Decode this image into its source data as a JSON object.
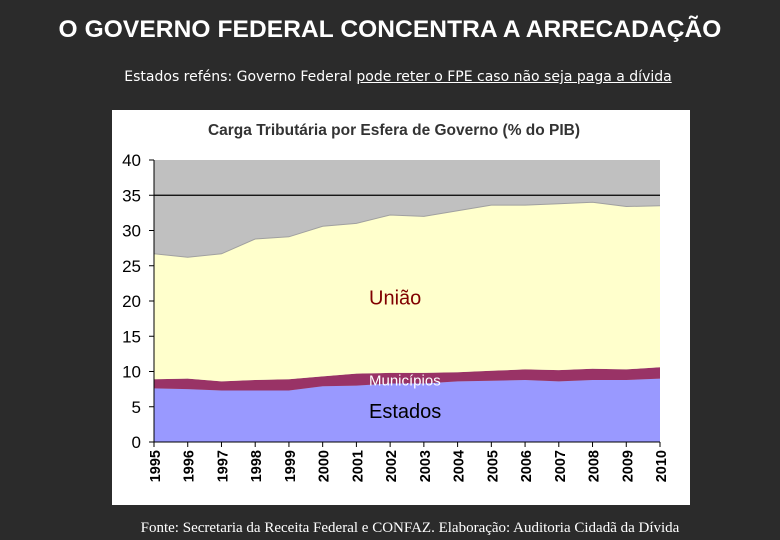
{
  "slide": {
    "title": "O GOVERNO FEDERAL CONCENTRA A ARRECADAÇÃO",
    "subtitle_plain": "Estados reféns: Governo Federal ",
    "subtitle_underlined": "pode reter o FPE caso não seja paga a dívida",
    "source": "Fonte: Secretaria da Receita Federal e CONFAZ. Elaboração: Auditoria Cidadã da Dívida"
  },
  "chart_data": {
    "type": "area",
    "stacked": true,
    "title": "Carga Tributária por Esfera de Governo (% do PIB)",
    "x": [
      "1995",
      "1996",
      "1997",
      "1998",
      "1999",
      "2000",
      "2001",
      "2002",
      "2003",
      "2004",
      "2005",
      "2006",
      "2007",
      "2008",
      "2009",
      "2010"
    ],
    "ylim": [
      0,
      40
    ],
    "yticks": [
      0,
      5,
      10,
      15,
      20,
      25,
      30,
      35,
      40
    ],
    "grid": true,
    "reference_line": 35,
    "series": [
      {
        "name": "Estados",
        "color": "#9999ff",
        "values": [
          7.6,
          7.5,
          7.3,
          7.3,
          7.3,
          7.9,
          8.0,
          8.3,
          8.3,
          8.6,
          8.7,
          8.8,
          8.6,
          8.8,
          8.8,
          9.0
        ]
      },
      {
        "name": "Municípios",
        "color": "#993366",
        "values": [
          1.3,
          1.5,
          1.3,
          1.5,
          1.6,
          1.4,
          1.7,
          1.5,
          1.5,
          1.3,
          1.4,
          1.5,
          1.6,
          1.6,
          1.5,
          1.6
        ]
      },
      {
        "name": "União",
        "color": "#ffffcc",
        "values": [
          17.8,
          17.2,
          18.1,
          20.0,
          20.2,
          21.3,
          21.3,
          22.4,
          22.2,
          22.9,
          23.5,
          23.3,
          23.6,
          23.6,
          23.1,
          22.9
        ]
      }
    ],
    "annotations": [
      {
        "text": "União",
        "series": "União"
      },
      {
        "text": "Municípios",
        "series": "Municípios"
      },
      {
        "text": "Estados",
        "series": "Estados"
      }
    ]
  },
  "colors": {
    "background": "#2b2b2b",
    "chart_panel": "#ffffff",
    "plot_background": "#c0c0c0",
    "text": "#ffffff"
  }
}
